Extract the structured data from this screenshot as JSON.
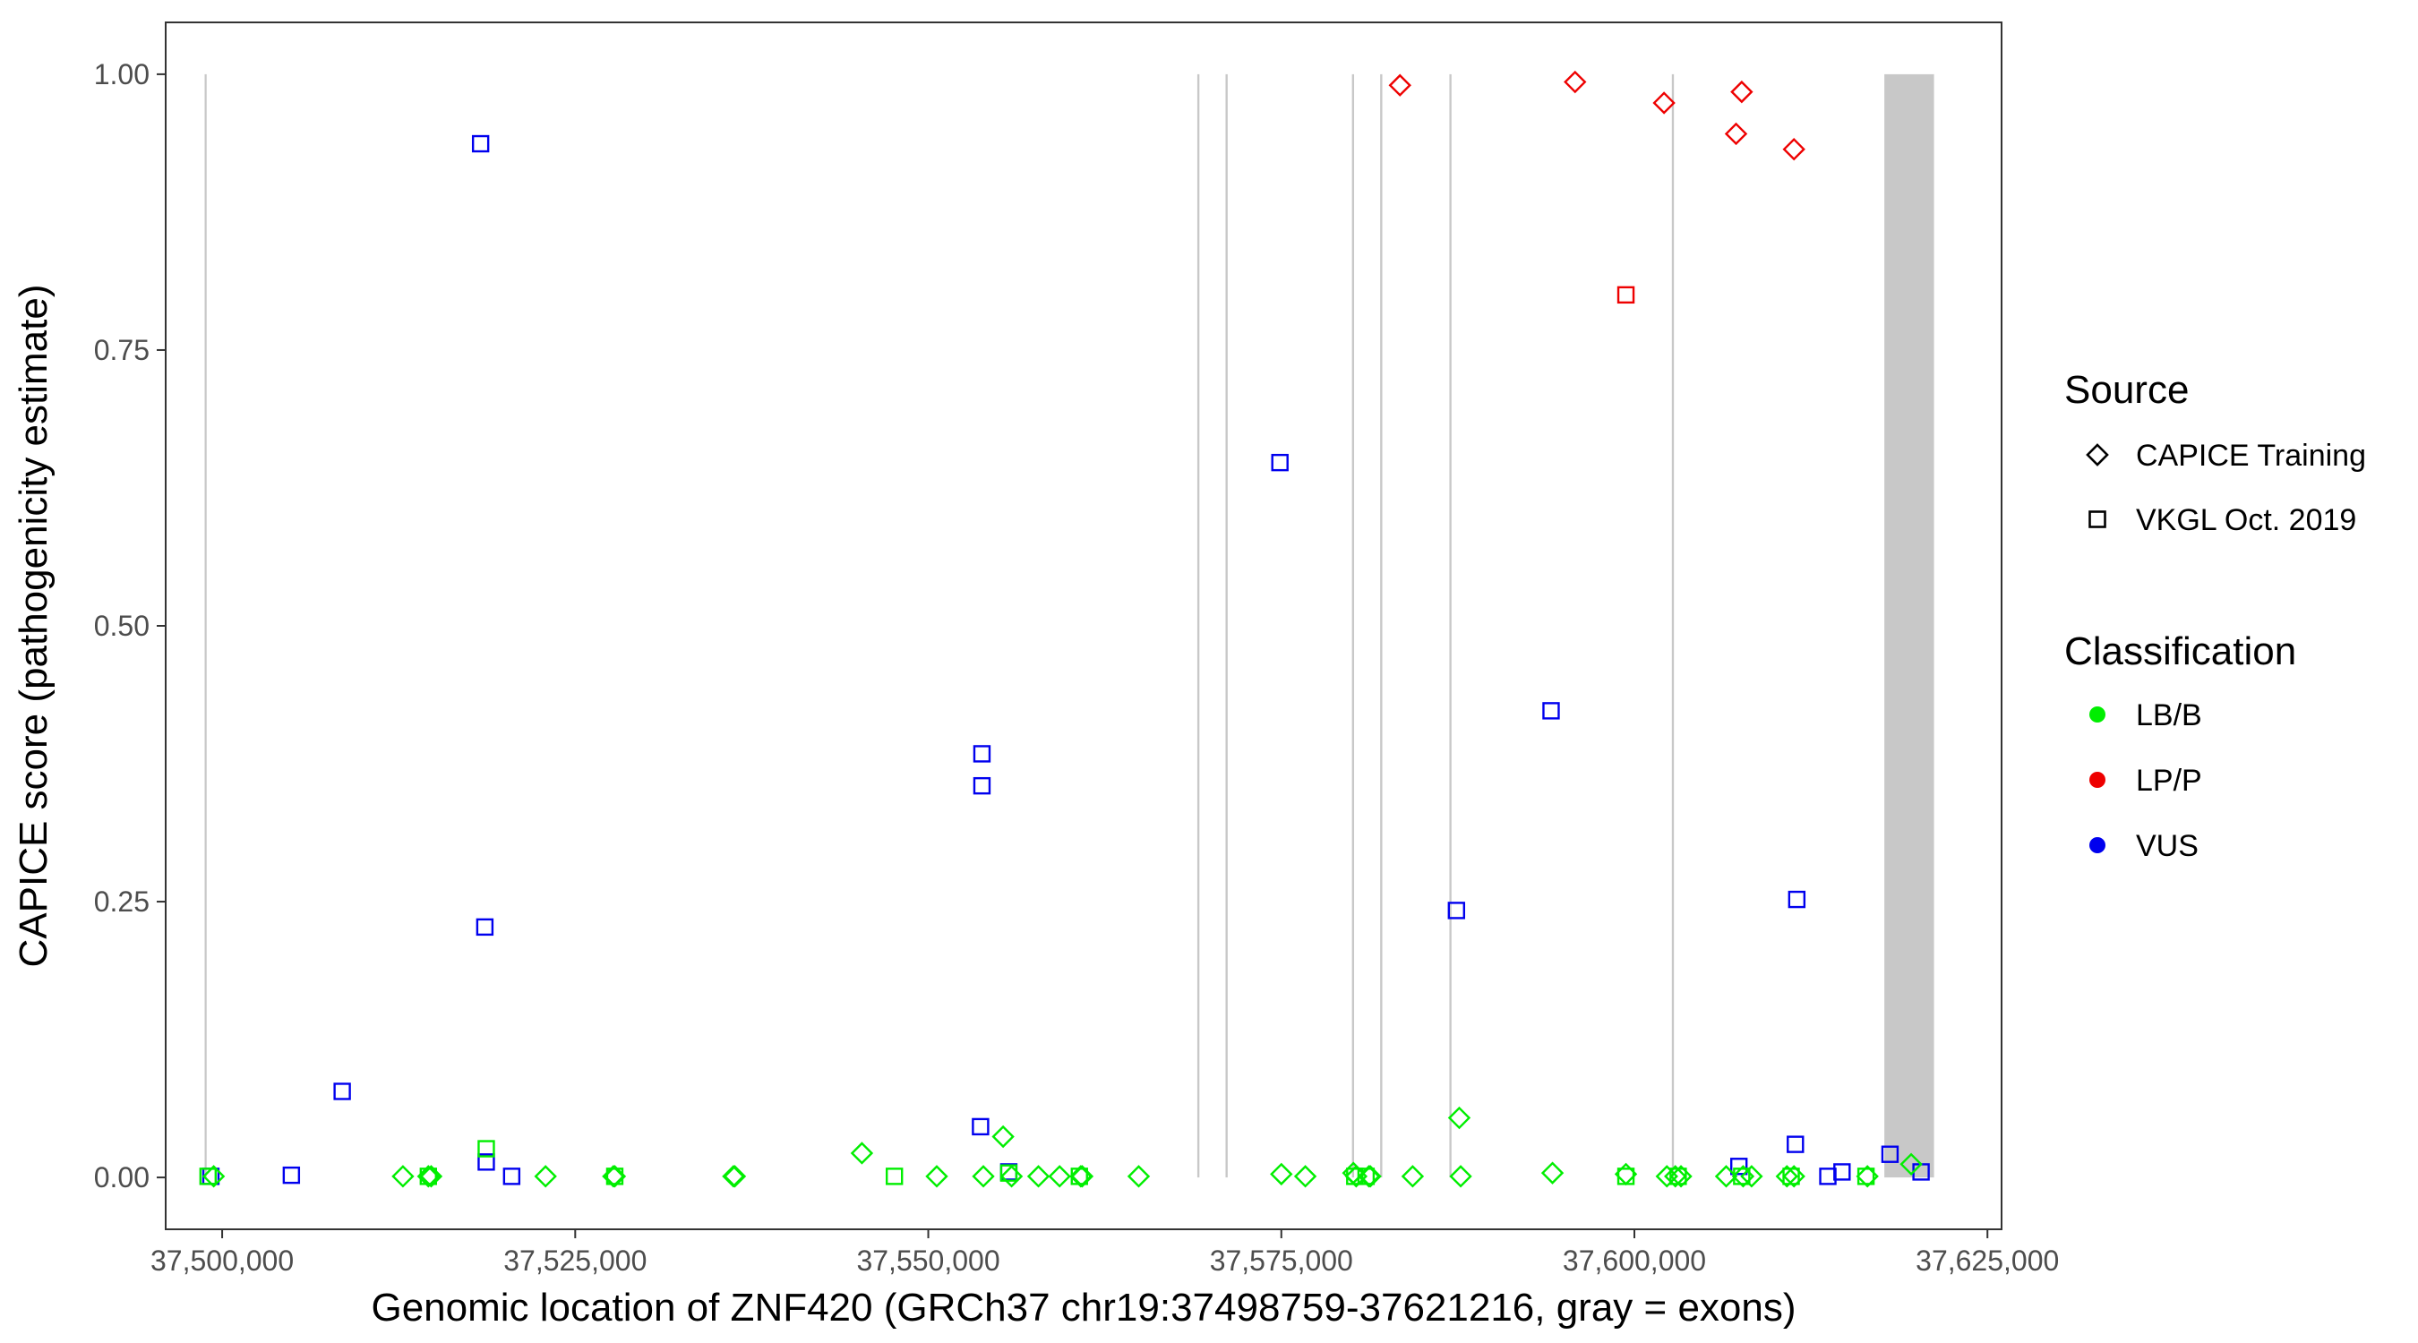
{
  "chart_data": {
    "type": "scatter",
    "xlabel": "Genomic location of ZNF420 (GRCh37 chr19:37498759-37621216, gray = exons)",
    "ylabel": "CAPICE score (pathogenicity estimate)",
    "xlim": [
      37496000,
      37626000
    ],
    "ylim": [
      -0.047,
      1.047
    ],
    "x_ticks": [
      {
        "value": 37500000,
        "label": "37,500,000"
      },
      {
        "value": 37525000,
        "label": "37,525,000"
      },
      {
        "value": 37550000,
        "label": "37,550,000"
      },
      {
        "value": 37575000,
        "label": "37,575,000"
      },
      {
        "value": 37600000,
        "label": "37,600,000"
      },
      {
        "value": 37625000,
        "label": "37,625,000"
      }
    ],
    "y_ticks": [
      {
        "value": 0.0,
        "label": "0.00"
      },
      {
        "value": 0.25,
        "label": "0.25"
      },
      {
        "value": 0.5,
        "label": "0.50"
      },
      {
        "value": 0.75,
        "label": "0.75"
      },
      {
        "value": 1.0,
        "label": "1.00"
      }
    ],
    "grid": false,
    "exons": [
      [
        37498759,
        37498900
      ],
      [
        37569050,
        37569200
      ],
      [
        37571050,
        37571200
      ],
      [
        37580000,
        37580150
      ],
      [
        37582000,
        37582150
      ],
      [
        37586900,
        37587050
      ],
      [
        37602650,
        37602800
      ],
      [
        37617700,
        37621216
      ]
    ],
    "legend": {
      "placement": "right",
      "source": {
        "title": "Source",
        "items": [
          {
            "label": "CAPICE Training",
            "shape": "diamond"
          },
          {
            "label": "VKGL Oct. 2019",
            "shape": "square"
          }
        ]
      },
      "classification": {
        "title": "Classification",
        "items": [
          {
            "label": "LB/B",
            "color": "#00ee00"
          },
          {
            "label": "LP/P",
            "color": "#ee0000"
          },
          {
            "label": "VUS",
            "color": "#0000ee"
          }
        ]
      }
    },
    "colors": {
      "LB/B": "#00ee00",
      "LP/P": "#ee0000",
      "VUS": "#0000ee"
    },
    "series": [
      {
        "source": "CAPICE Training",
        "classification": "LP/P",
        "points": [
          [
            37583400,
            0.99
          ],
          [
            37595800,
            0.993
          ],
          [
            37602100,
            0.974
          ],
          [
            37607200,
            0.946
          ],
          [
            37607600,
            0.984
          ],
          [
            37611300,
            0.932
          ]
        ]
      },
      {
        "source": "VKGL Oct. 2019",
        "classification": "LP/P",
        "points": [
          [
            37599400,
            0.8
          ]
        ]
      },
      {
        "source": "VKGL Oct. 2019",
        "classification": "VUS",
        "points": [
          [
            37499200,
            0.001
          ],
          [
            37504900,
            0.002
          ],
          [
            37508500,
            0.078
          ],
          [
            37518300,
            0.937
          ],
          [
            37518600,
            0.227
          ],
          [
            37518700,
            0.014
          ],
          [
            37520500,
            0.001
          ],
          [
            37553800,
            0.384
          ],
          [
            37553800,
            0.355
          ],
          [
            37553700,
            0.046
          ],
          [
            37555700,
            0.005
          ],
          [
            37574900,
            0.648
          ],
          [
            37587400,
            0.242
          ],
          [
            37594100,
            0.423
          ],
          [
            37607400,
            0.01
          ],
          [
            37611500,
            0.252
          ],
          [
            37611400,
            0.03
          ],
          [
            37613700,
            0.001
          ],
          [
            37614700,
            0.005
          ],
          [
            37618100,
            0.021
          ],
          [
            37620300,
            0.005
          ]
        ]
      },
      {
        "source": "CAPICE Training",
        "classification": "LB/B",
        "points": [
          [
            37499400,
            0.001
          ],
          [
            37512800,
            0.001
          ],
          [
            37514600,
            0.001
          ],
          [
            37514800,
            0.001
          ],
          [
            37522900,
            0.001
          ],
          [
            37527700,
            0.001
          ],
          [
            37527800,
            0.001
          ],
          [
            37536200,
            0.001
          ],
          [
            37536300,
            0.001
          ],
          [
            37545300,
            0.022
          ],
          [
            37550600,
            0.001
          ],
          [
            37553900,
            0.001
          ],
          [
            37555300,
            0.037
          ],
          [
            37555900,
            0.001
          ],
          [
            37557800,
            0.001
          ],
          [
            37559300,
            0.001
          ],
          [
            37560800,
            0.001
          ],
          [
            37560900,
            0.001
          ],
          [
            37564900,
            0.001
          ],
          [
            37575000,
            0.003
          ],
          [
            37576700,
            0.001
          ],
          [
            37580100,
            0.004
          ],
          [
            37580300,
            0.001
          ],
          [
            37581200,
            0.001
          ],
          [
            37581300,
            0.001
          ],
          [
            37584300,
            0.001
          ],
          [
            37587600,
            0.054
          ],
          [
            37587700,
            0.001
          ],
          [
            37594200,
            0.004
          ],
          [
            37599400,
            0.003
          ],
          [
            37602300,
            0.001
          ],
          [
            37602900,
            0.001
          ],
          [
            37603300,
            0.001
          ],
          [
            37606500,
            0.001
          ],
          [
            37607700,
            0.001
          ],
          [
            37608300,
            0.001
          ],
          [
            37610800,
            0.001
          ],
          [
            37611300,
            0.001
          ],
          [
            37616500,
            0.001
          ],
          [
            37619600,
            0.012
          ]
        ]
      },
      {
        "source": "VKGL Oct. 2019",
        "classification": "LB/B",
        "points": [
          [
            37499000,
            0.001
          ],
          [
            37514600,
            0.001
          ],
          [
            37518700,
            0.026
          ],
          [
            37527800,
            0.001
          ],
          [
            37547600,
            0.001
          ],
          [
            37555700,
            0.004
          ],
          [
            37560700,
            0.001
          ],
          [
            37580200,
            0.001
          ],
          [
            37581000,
            0.001
          ],
          [
            37599400,
            0.001
          ],
          [
            37603100,
            0.001
          ],
          [
            37607600,
            0.001
          ],
          [
            37611100,
            0.001
          ],
          [
            37616400,
            0.001
          ]
        ]
      }
    ]
  }
}
